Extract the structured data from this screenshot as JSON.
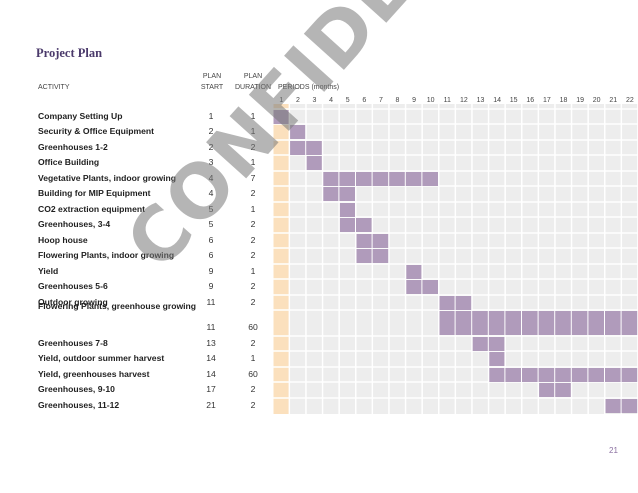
{
  "title": "Project Plan",
  "headers": {
    "activity": "ACTIVITY",
    "plan_start_1": "PLAN",
    "plan_start_2": "START",
    "plan_duration_1": "PLAN",
    "plan_duration_2": "DURATION",
    "periods": "PERIODS (months)"
  },
  "periods": [
    "1",
    "2",
    "3",
    "4",
    "5",
    "6",
    "7",
    "8",
    "9",
    "10",
    "11",
    "12",
    "13",
    "14",
    "15",
    "16",
    "17",
    "18",
    "19",
    "20",
    "21",
    "22"
  ],
  "rows": [
    {
      "activity": "Company Setting Up",
      "start": 1,
      "duration": 1
    },
    {
      "activity": "Security & Office Equipment",
      "start": 2,
      "duration": 1
    },
    {
      "activity": "Greenhouses 1-2",
      "start": 2,
      "duration": 2
    },
    {
      "activity": "Office Building",
      "start": 3,
      "duration": 1
    },
    {
      "activity": "Vegetative Plants, indoor growing",
      "start": 4,
      "duration": 7
    },
    {
      "activity": "Building for MIP Equipment",
      "start": 4,
      "duration": 2
    },
    {
      "activity": "CO2 extraction equipment",
      "start": 5,
      "duration": 1
    },
    {
      "activity": "Greenhouses, 3-4",
      "start": 5,
      "duration": 2
    },
    {
      "activity": "Hoop house",
      "start": 6,
      "duration": 2
    },
    {
      "activity": "Flowering Plants, indoor growing",
      "start": 6,
      "duration": 2
    },
    {
      "activity": "Yield",
      "start": 9,
      "duration": 1
    },
    {
      "activity": "Greenhouses 5-6",
      "start": 9,
      "duration": 2
    },
    {
      "activity": "Outdoor growing",
      "start": 11,
      "duration": 2
    },
    {
      "activity": "Flowering Plants, greenhouse growing",
      "start": 11,
      "duration": 60
    },
    {
      "activity": "Greenhouses 7-8",
      "start": 13,
      "duration": 2
    },
    {
      "activity": "Yield, outdoor summer harvest",
      "start": 14,
      "duration": 1
    },
    {
      "activity": "Yield, greenhouses harvest",
      "start": 14,
      "duration": 60
    },
    {
      "activity": "Greenhouses, 9-10",
      "start": 17,
      "duration": 2
    },
    {
      "activity": "Greenhouses, 11-12",
      "start": 21,
      "duration": 2
    }
  ],
  "watermark": "CONFIDENTIAL",
  "page_number": "21",
  "colors": {
    "bar": "#b09bbb",
    "grid_cell": "#ededed",
    "highlight_period": "#fbe0bd",
    "title": "#4b3a6b"
  }
}
